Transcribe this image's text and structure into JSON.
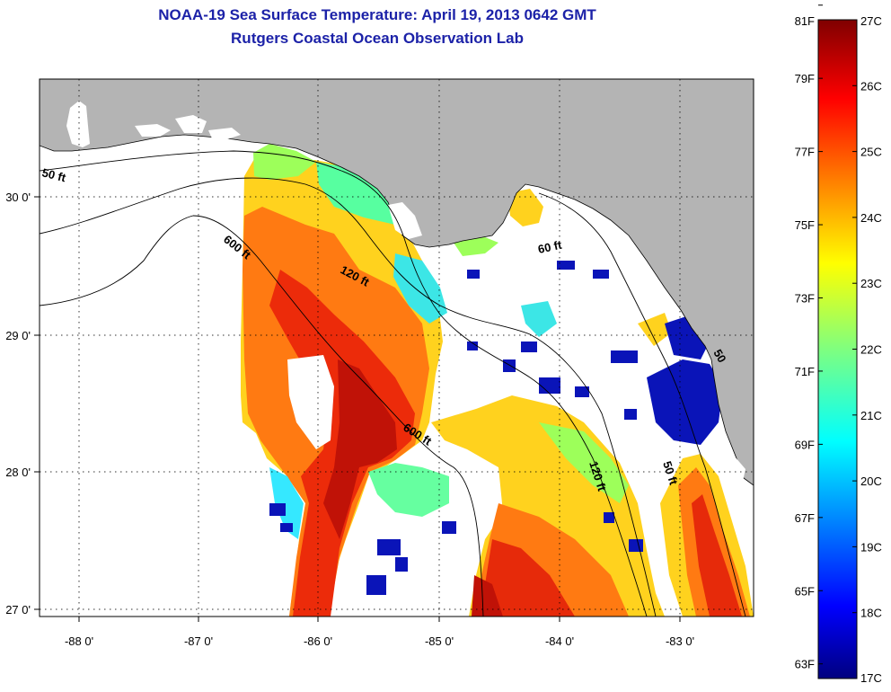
{
  "title": "NOAA-19 Sea Surface Temperature:  April 19, 2013 0642 GMT",
  "subtitle": "Rutgers Coastal Ocean Observation Lab",
  "longitude_labels": [
    "-88 0'",
    "-87 0'",
    "-86 0'",
    "-85 0'",
    "-84 0'",
    "-83 0'"
  ],
  "latitude_labels": [
    "30 0'",
    "29 0'",
    "28 0'",
    "27 0'"
  ],
  "depth_contours": [
    "50 ft",
    "600 ft",
    "120 ft",
    "60 ft",
    "600 ft",
    "120 ft",
    "50 ft",
    "50"
  ],
  "colorbar": {
    "fahrenheit": [
      "81F",
      "79F",
      "77F",
      "75F",
      "73F",
      "71F",
      "69F",
      "67F",
      "65F",
      "63F"
    ],
    "celsius": [
      "27C",
      "26C",
      "25C",
      "24C",
      "23C",
      "22C",
      "21C",
      "20C",
      "19C",
      "18C",
      "17C"
    ],
    "range_c": [
      17,
      27
    ]
  },
  "colors": {
    "land": "#b4b4b4",
    "title": "#1c22a8"
  }
}
